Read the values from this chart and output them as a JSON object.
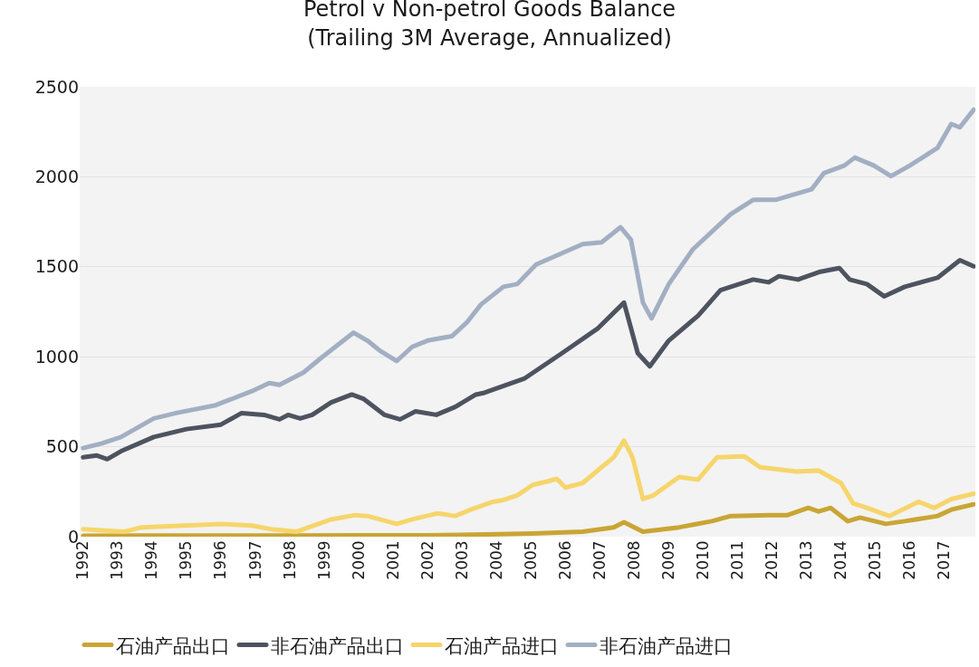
{
  "chart_data": {
    "type": "line",
    "title": "Petrol v Non-petrol Goods Balance",
    "subtitle": "(Trailing 3M Average, Annualized)",
    "xlim": [
      1991.9,
      2017.9
    ],
    "xticks": [
      1992,
      1993,
      1994,
      1995,
      1996,
      1997,
      1998,
      1999,
      2000,
      2001,
      2002,
      2003,
      2004,
      2005,
      2006,
      2007,
      2008,
      2009,
      2010,
      2011,
      2012,
      2013,
      2014,
      2015,
      2016,
      2017
    ],
    "ylim": [
      0,
      2500
    ],
    "yticks": [
      0,
      500,
      1000,
      1500,
      2000,
      2500
    ],
    "grid": "y",
    "legend": "bottom",
    "marker": "none",
    "line_style": "solid",
    "series": [
      {
        "name": "石油产品出口",
        "color": "#c9a534",
        "x": [
          1992,
          1994,
          1996,
          1998,
          2000,
          2002,
          2003.7,
          2005.05,
          2006.5,
          2007.4,
          2007.7,
          2008.25,
          2009.3,
          2010.25,
          2010.8,
          2011.9,
          2012.45,
          2013.05,
          2013.35,
          2013.7,
          2014.2,
          2014.55,
          2015.3,
          2015.85,
          2016.8,
          2017.2,
          2017.85
        ],
        "values": [
          5,
          6,
          6,
          6,
          8,
          8,
          12,
          18,
          28,
          52,
          81,
          28,
          52,
          86,
          115,
          120,
          120,
          160,
          140,
          160,
          86,
          106,
          71,
          86,
          115,
          150,
          180
        ]
      },
      {
        "name": "非石油产品出口",
        "color": "#4d535f",
        "x": [
          1992,
          1992.4,
          1992.7,
          1993.1,
          1994.05,
          1995,
          1996,
          1996.6,
          1997.25,
          1997.7,
          1997.95,
          1998.3,
          1998.65,
          1999.2,
          1999.8,
          2000.15,
          2000.75,
          2001.2,
          2001.65,
          2002.25,
          2002.8,
          2003.4,
          2003.65,
          2004.8,
          2005.9,
          2006.95,
          2007.7,
          2008.1,
          2008.45,
          2009,
          2009.85,
          2010.5,
          2011.45,
          2011.9,
          2012.2,
          2012.75,
          2013.4,
          2013.95,
          2014.25,
          2014.75,
          2015.25,
          2015.85,
          2016.8,
          2017.45,
          2017.85
        ],
        "values": [
          441,
          451,
          431,
          475,
          554,
          598,
          623,
          687,
          677,
          652,
          677,
          657,
          677,
          746,
          790,
          765,
          677,
          652,
          697,
          677,
          721,
          790,
          800,
          878,
          1020,
          1159,
          1301,
          1020,
          947,
          1090,
          1228,
          1370,
          1429,
          1414,
          1448,
          1429,
          1473,
          1493,
          1429,
          1404,
          1336,
          1389,
          1439,
          1537,
          1503
        ]
      },
      {
        "name": "石油产品进口",
        "color": "#f6d56b",
        "x": [
          1992,
          1993.2,
          1993.7,
          1996,
          1996.9,
          1997.45,
          1998.2,
          1999.2,
          1999.9,
          2000.25,
          2001.1,
          2001.55,
          2002.3,
          2002.8,
          2003.25,
          2003.9,
          2004.2,
          2004.6,
          2005.05,
          2005.5,
          2005.75,
          2006,
          2006.5,
          2007.05,
          2007.4,
          2007.7,
          2007.95,
          2008.25,
          2008.55,
          2009.3,
          2009.85,
          2010.4,
          2011.2,
          2011.65,
          2012.7,
          2013.35,
          2014,
          2014.35,
          2014.75,
          2015.4,
          2016.25,
          2016.7,
          2017.2,
          2017.85
        ],
        "values": [
          42,
          28,
          52,
          71,
          62,
          42,
          28,
          96,
          120,
          115,
          71,
          96,
          130,
          115,
          150,
          194,
          204,
          229,
          288,
          308,
          322,
          273,
          298,
          386,
          441,
          534,
          441,
          209,
          229,
          332,
          317,
          441,
          446,
          386,
          362,
          367,
          298,
          185,
          160,
          115,
          194,
          160,
          209,
          239
        ]
      },
      {
        "name": "非石油产品进口",
        "color": "#a2afc3",
        "x": [
          1992,
          1992.55,
          1993.1,
          1994.05,
          1994.7,
          1995.85,
          1996.9,
          1997.4,
          1997.7,
          1998.4,
          1998.9,
          1999.85,
          2000.25,
          2000.6,
          2001.1,
          2001.55,
          2002,
          2002.7,
          2003.15,
          2003.55,
          2004.2,
          2004.6,
          2005.15,
          2006.5,
          2007.05,
          2007.6,
          2007.9,
          2008.25,
          2008.5,
          2009,
          2009.7,
          2010.8,
          2011.45,
          2012.1,
          2013.15,
          2013.5,
          2014.1,
          2014.4,
          2014.95,
          2015.45,
          2016,
          2016.8,
          2017.2,
          2017.45,
          2017.85
        ],
        "values": [
          492,
          519,
          554,
          657,
          687,
          731,
          809,
          854,
          844,
          913,
          992,
          1134,
          1090,
          1036,
          976,
          1055,
          1090,
          1114,
          1193,
          1291,
          1389,
          1404,
          1513,
          1626,
          1636,
          1720,
          1651,
          1301,
          1213,
          1404,
          1597,
          1793,
          1872,
          1872,
          1931,
          2020,
          2063,
          2107,
          2063,
          2004,
          2063,
          2161,
          2294,
          2275,
          2373
        ]
      }
    ]
  }
}
